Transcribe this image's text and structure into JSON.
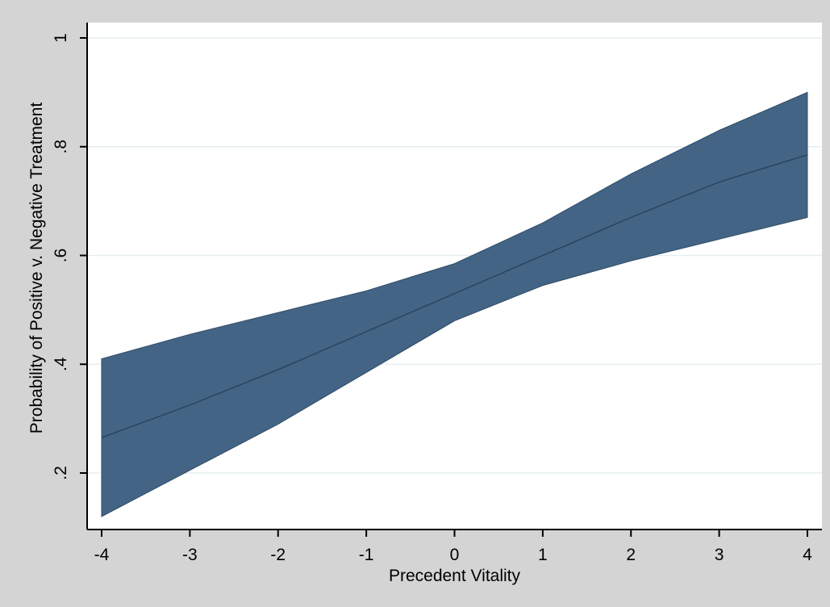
{
  "chart_data": {
    "type": "area",
    "xlabel": "Precedent Vitality",
    "ylabel": "Probability of Positive v. Negative Treatment",
    "xlim": [
      -4,
      4
    ],
    "ylim": [
      0.12,
      1.0
    ],
    "x_ticks": [
      -4,
      -3,
      -2,
      -1,
      0,
      1,
      2,
      3,
      4
    ],
    "x_tick_labels": [
      "-4",
      "-3",
      "-2",
      "-1",
      "0",
      "1",
      "2",
      "3",
      "4"
    ],
    "y_ticks": [
      0.2,
      0.4,
      0.6,
      0.8,
      1.0
    ],
    "y_tick_labels": [
      ".2",
      ".4",
      ".6",
      ".8",
      "1"
    ],
    "grid": true,
    "series": [
      {
        "x": [
          -4,
          -3,
          -2,
          -1,
          0,
          1,
          2,
          3,
          4
        ],
        "lower": [
          0.12,
          0.205,
          0.29,
          0.385,
          0.48,
          0.545,
          0.59,
          0.63,
          0.67
        ],
        "upper": [
          0.41,
          0.455,
          0.495,
          0.535,
          0.585,
          0.66,
          0.75,
          0.83,
          0.9
        ],
        "y": [
          0.265,
          0.325,
          0.39,
          0.46,
          0.53,
          0.6,
          0.67,
          0.735,
          0.785
        ]
      }
    ],
    "colors": {
      "band": "#436484",
      "band_edge": "#2f4b66",
      "line": "#2a4560",
      "plot_bg": "#ffffff",
      "outer_bg": "#d4d4d4",
      "grid": "#e6eef2",
      "axis": "#000000"
    }
  }
}
